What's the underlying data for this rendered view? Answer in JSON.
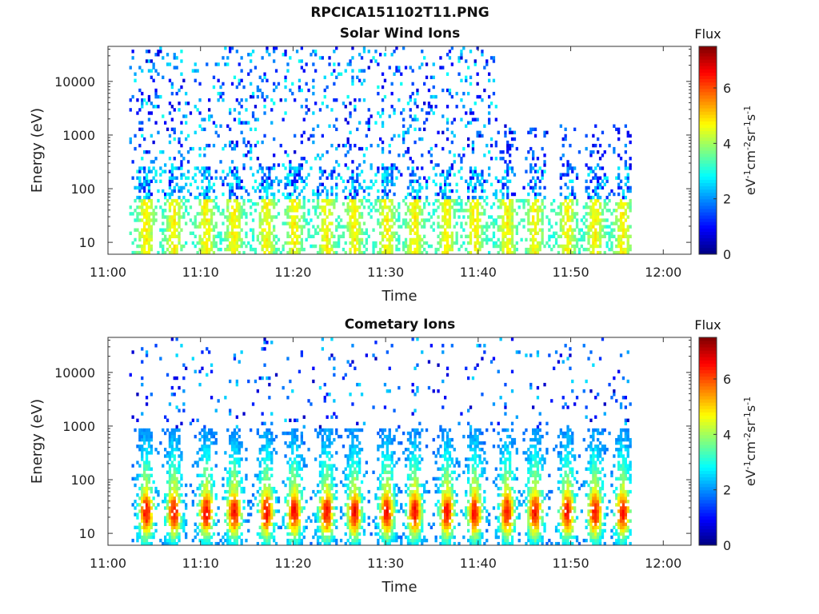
{
  "figure": {
    "title": "RPCICA151102T11.PNG"
  },
  "chart_data": [
    {
      "type": "heatmap",
      "title": "Solar Wind Ions",
      "xlabel": "Time",
      "ylabel": "Energy (eV)",
      "x_ticks": [
        "11:00",
        "11:10",
        "11:20",
        "11:30",
        "11:40",
        "11:50",
        "12:00"
      ],
      "y_ticks": [
        "10",
        "100",
        "1000",
        "10000"
      ],
      "x_range_minutes": [
        0,
        63
      ],
      "y_range_eV": [
        6,
        45000
      ],
      "y_scale": "log",
      "colorbar": {
        "title": "Flux",
        "label": "eV-1cm-2sr-1s-1",
        "ticks": [
          "0",
          "2",
          "4",
          "6"
        ],
        "range": [
          0,
          7.5
        ],
        "colormap": "jet"
      },
      "data_start_minute": 2.3,
      "data_end_minute": 56.5,
      "broad_emission_end_minute": 42,
      "pulse_times_minutes": [
        4,
        7,
        10.5,
        13.5,
        17,
        20,
        23.5,
        26.5,
        30,
        33,
        36.5,
        39.5,
        43,
        46,
        49.5,
        52.5,
        55.5
      ],
      "typical_flux_low_energy": 3.5,
      "typical_flux_background": 2.5
    },
    {
      "type": "heatmap",
      "title": "Cometary Ions",
      "xlabel": "Time",
      "ylabel": "Energy (eV)",
      "x_ticks": [
        "11:00",
        "11:10",
        "11:20",
        "11:30",
        "11:40",
        "11:50",
        "12:00"
      ],
      "y_ticks": [
        "10",
        "100",
        "1000",
        "10000"
      ],
      "x_range_minutes": [
        0,
        63
      ],
      "y_range_eV": [
        6,
        45000
      ],
      "y_scale": "log",
      "colorbar": {
        "title": "Flux",
        "label": "eV-1cm-2sr-1s-1",
        "ticks": [
          "0",
          "2",
          "4",
          "6"
        ],
        "range": [
          0,
          7.5
        ],
        "colormap": "jet"
      },
      "data_start_minute": 2.3,
      "data_end_minute": 56.5,
      "pulse_times_minutes": [
        4,
        7,
        10.5,
        13.5,
        17,
        20,
        23.5,
        26.5,
        30,
        33,
        36.5,
        39.5,
        43,
        46,
        49.5,
        52.5,
        55.5
      ],
      "peak_flux": 6.3,
      "peak_energy_eV": 25
    }
  ]
}
